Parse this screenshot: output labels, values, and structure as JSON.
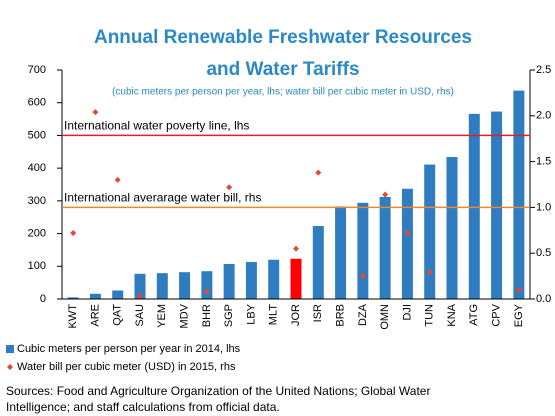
{
  "chart_data": {
    "type": "bar",
    "title": [
      "Annual Renewable Freshwater Resources",
      "and Water Tariffs"
    ],
    "subtitle": "(cubic meters per person per year, lhs; water bill per cubic meter in USD, rhs)",
    "categories": [
      "KWT",
      "ARE",
      "QAT",
      "SAU",
      "YEM",
      "MDV",
      "BHR",
      "SGP",
      "LBY",
      "MLT",
      "JOR",
      "ISR",
      "BRB",
      "DZA",
      "OMN",
      "DJI",
      "TUN",
      "KNA",
      "ATG",
      "CPV",
      "EGY"
    ],
    "series": [
      {
        "name": "Cubic meters per person per year in 2014, lhs",
        "color": "#2f7dc0",
        "point_colors": [
          "#2f7dc0",
          "#2f7dc0",
          "#2f7dc0",
          "#2f7dc0",
          "#2f7dc0",
          "#2f7dc0",
          "#2f7dc0",
          "#2f7dc0",
          "#2f7dc0",
          "#2f7dc0",
          "#ff0000",
          "#2f7dc0",
          "#2f7dc0",
          "#2f7dc0",
          "#2f7dc0",
          "#2f7dc0",
          "#2f7dc0",
          "#2f7dc0",
          "#2f7dc0",
          "#2f7dc0",
          "#2f7dc0"
        ],
        "values": [
          5,
          16,
          26,
          77,
          79,
          82,
          85,
          107,
          113,
          120,
          123,
          223,
          283,
          294,
          312,
          337,
          411,
          434,
          566,
          573,
          637
        ]
      },
      {
        "name": "Water bill per cubic meter (USD) in 2015, rhs",
        "color": "#e8472a",
        "axis": "y2",
        "type": "scatter",
        "values": [
          0.72,
          2.04,
          1.3,
          0.03,
          null,
          null,
          0.08,
          1.22,
          null,
          null,
          0.55,
          1.38,
          null,
          0.25,
          1.14,
          0.72,
          0.29,
          null,
          null,
          null,
          0.1
        ]
      }
    ],
    "reference_lines": [
      {
        "label": "International water poverty line, lhs",
        "value": 500,
        "axis": "y",
        "color": "#e81c24"
      },
      {
        "label": "International averarage water bill, rhs",
        "value": 1.0,
        "axis": "y2",
        "color": "#f0862a"
      }
    ],
    "ylim": [
      0,
      700
    ],
    "yticks": [
      0,
      100,
      200,
      300,
      400,
      500,
      600,
      700
    ],
    "y2lim": [
      0,
      2.5
    ],
    "y2ticks": [
      {
        "value": 0,
        "label": "0.0"
      },
      0.5,
      {
        "value": 1,
        "label": "1.0"
      },
      1.5,
      {
        "value": 2,
        "label": "2.0"
      },
      2.5
    ],
    "source": [
      "Sources: Food and Agriculture Organization of the United Nations; Global Water",
      "Intelligence; and staff calculations from official data."
    ]
  }
}
